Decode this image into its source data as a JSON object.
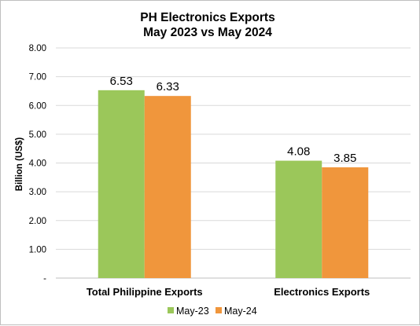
{
  "chart_data": {
    "type": "bar",
    "title": "PH Electronics Exports",
    "subtitle": "May 2023 vs May 2024",
    "xlabel": "",
    "ylabel": "Billion (US$)",
    "ylim": [
      0,
      8
    ],
    "yticks": [
      0,
      1,
      2,
      3,
      4,
      5,
      6,
      7,
      8
    ],
    "ytick_labels": [
      "-",
      "1.00",
      "2.00",
      "3.00",
      "4.00",
      "5.00",
      "6.00",
      "7.00",
      "8.00"
    ],
    "categories": [
      "Total Philippine Exports",
      "Electronics Exports"
    ],
    "series": [
      {
        "name": "May-23",
        "values": [
          6.53,
          4.08
        ],
        "labels": [
          "6.53",
          "4.08"
        ],
        "color": "#9bc75a"
      },
      {
        "name": "May-24",
        "values": [
          6.33,
          3.85
        ],
        "labels": [
          "6.33",
          "3.85"
        ],
        "color": "#f0963c"
      }
    ],
    "grid": true,
    "legend_position": "bottom"
  }
}
